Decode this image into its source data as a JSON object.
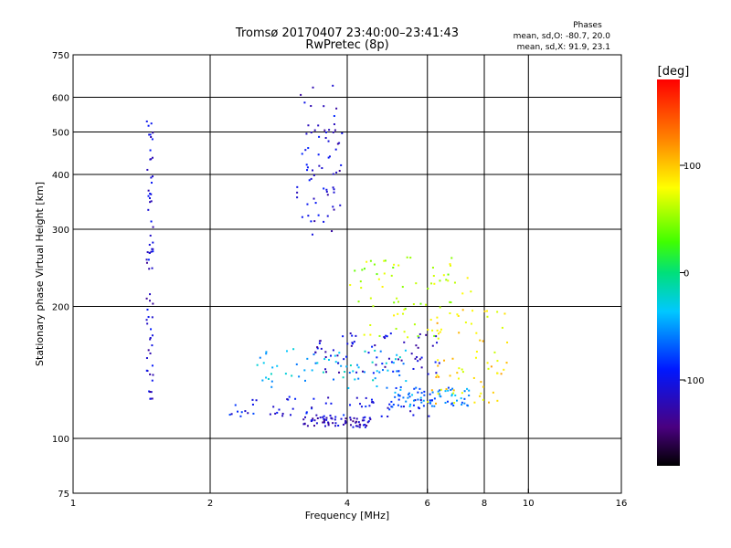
{
  "chart_data": {
    "type": "scatter",
    "title": "Tromsø 20170407 23:40:00–23:41:43",
    "subtitle": "RwPretec (8p)",
    "xlabel": "Frequency [MHz]",
    "ylabel": "Stationary phase Virtual Height [km]",
    "x_scale": "log",
    "y_scale": "log",
    "xlim": [
      1,
      16
    ],
    "ylim": [
      75,
      750
    ],
    "x_ticks": [
      1,
      2,
      4,
      6,
      8,
      10,
      16
    ],
    "y_ticks": [
      75,
      100,
      200,
      300,
      400,
      500,
      600,
      750
    ],
    "x_gridlines": [
      2,
      4,
      6,
      8,
      10
    ],
    "y_gridlines": [
      100,
      200,
      300,
      400,
      500,
      600
    ],
    "grid": true,
    "phase_box": {
      "title": "Phases",
      "line1": "mean, sd,O:  -80.7, 20.0",
      "line2": "mean, sd,X:  91.9, 23.1"
    },
    "colorbar": {
      "label": "[deg]",
      "ticks": [
        {
          "value": 100,
          "label": "100"
        },
        {
          "value": 0,
          "label": "0"
        },
        {
          "value": -100,
          "label": "-100"
        }
      ],
      "range": [
        -180,
        180
      ]
    },
    "traces": [
      {
        "x_range": [
          3.1,
          3.9
        ],
        "y_range": [
          290,
          640
        ],
        "phase": -110
      },
      {
        "x_range": [
          2.2,
          6.2
        ],
        "y_range": [
          112,
          125
        ],
        "phase": -100
      },
      {
        "x_range": [
          3.2,
          4.5
        ],
        "y_range": [
          106,
          112
        ],
        "phase": -120
      },
      {
        "x_range": [
          5.0,
          7.6
        ],
        "y_range": [
          118,
          132
        ],
        "phase": -60
      },
      {
        "x_range": [
          2.5,
          5.5
        ],
        "y_range": [
          130,
          160
        ],
        "phase": -40
      },
      {
        "x_range": [
          3.4,
          6.5
        ],
        "y_range": [
          140,
          175
        ],
        "phase": -110
      },
      {
        "x_range": [
          4.0,
          7.5
        ],
        "y_range": [
          170,
          260
        ],
        "phase": 60
      },
      {
        "x_range": [
          6.0,
          9.0
        ],
        "y_range": [
          120,
          200
        ],
        "phase": 90
      },
      {
        "x_range": [
          1.45,
          1.5
        ],
        "y_range": [
          120,
          540
        ],
        "phase": -110
      }
    ]
  }
}
